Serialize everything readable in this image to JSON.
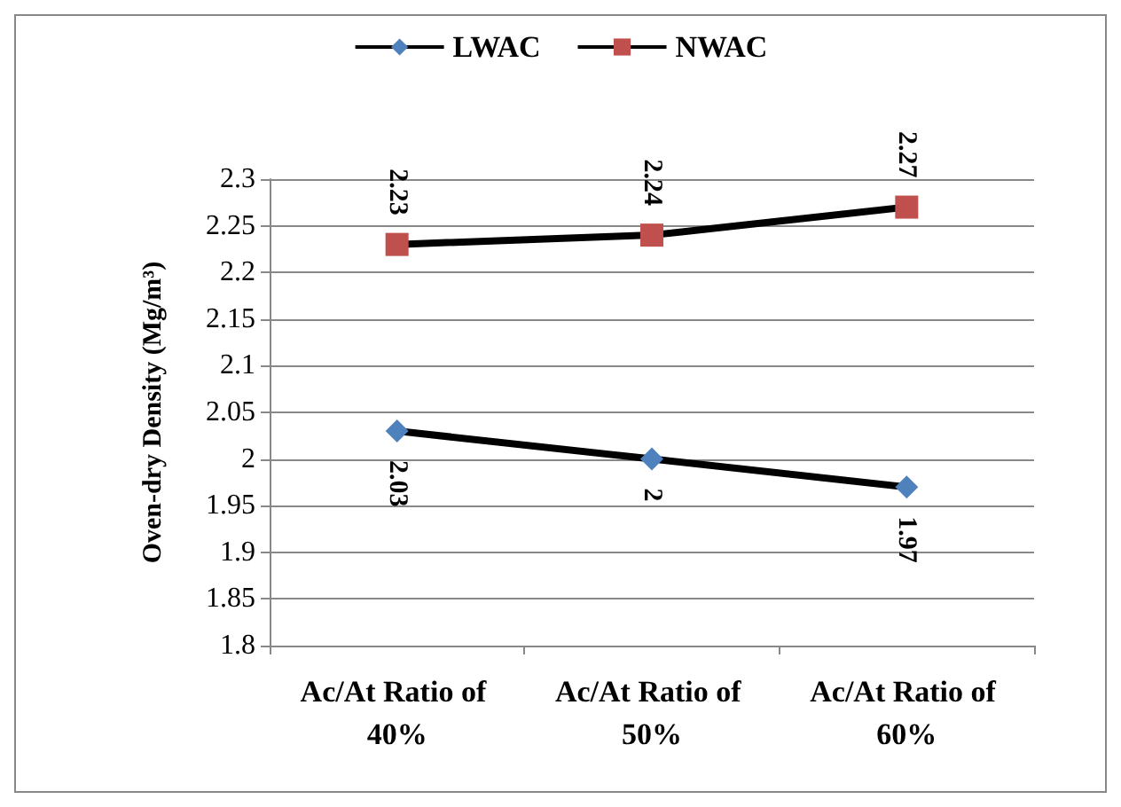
{
  "chart_data": {
    "type": "line",
    "ylabel": "Oven-dry Density (Mg/m³)",
    "categories": [
      "Ac/At Ratio of 40%",
      "Ac/At Ratio of 50%",
      "Ac/At Ratio of 60%"
    ],
    "series": [
      {
        "name": "LWAC",
        "color": "#4f81bd",
        "marker": "diamond",
        "values": [
          2.03,
          2,
          1.97
        ]
      },
      {
        "name": "NWAC",
        "color": "#c0504d",
        "marker": "square",
        "values": [
          2.23,
          2.24,
          2.27
        ]
      }
    ],
    "ylim": [
      1.8,
      2.3
    ],
    "yticks": [
      1.8,
      1.85,
      1.9,
      1.95,
      2,
      2.05,
      2.1,
      2.15,
      2.2,
      2.25,
      2.3
    ],
    "grid": "y",
    "legend": "top",
    "data_labels": true
  }
}
